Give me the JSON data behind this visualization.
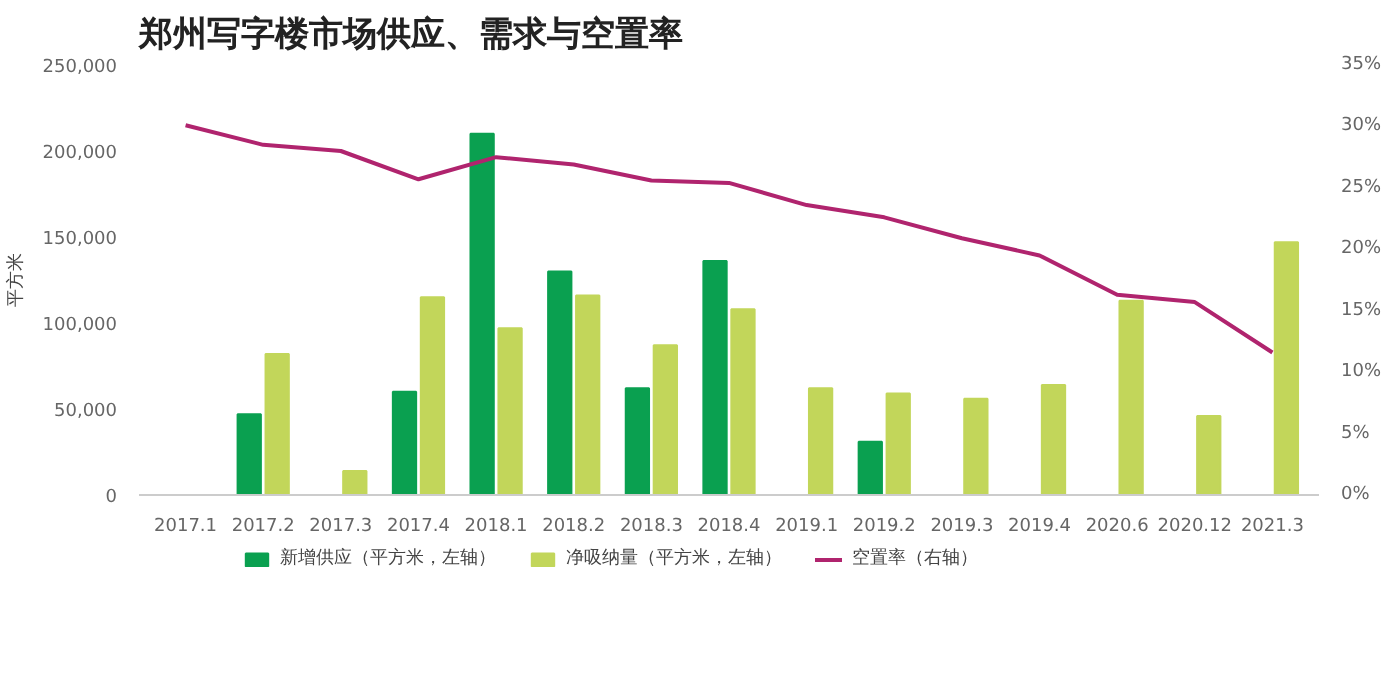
{
  "chart_data": {
    "type": "bar",
    "title": "郑州写字楼市场供应、需求与空置率",
    "ylabel": "平方米",
    "categories": [
      "2017.1",
      "2017.2",
      "2017.3",
      "2017.4",
      "2018.1",
      "2018.2",
      "2018.3",
      "2018.4",
      "2019.1",
      "2019.2",
      "2019.3",
      "2019.4",
      "2020.6",
      "2020.12",
      "2021.3"
    ],
    "series": [
      {
        "name": "新增供应（平方米，左轴）",
        "color": "#0aa050",
        "values": [
          null,
          47000,
          null,
          60000,
          210000,
          130000,
          62000,
          136000,
          null,
          31000,
          null,
          null,
          null,
          null,
          null
        ]
      },
      {
        "name": "净吸纳量（平方米，左轴）",
        "color": "#c2d65a",
        "values": [
          null,
          82000,
          14000,
          115000,
          97000,
          116000,
          87000,
          108000,
          62000,
          59000,
          56000,
          64000,
          113000,
          46000,
          147000
        ]
      },
      {
        "name": "空置率（右轴）",
        "color": "#b0246e",
        "type": "line",
        "axis": "y2",
        "values": [
          30.1,
          28.5,
          28.0,
          25.7,
          27.5,
          26.9,
          25.6,
          25.4,
          23.6,
          22.6,
          20.9,
          19.5,
          16.3,
          15.7,
          11.6
        ]
      }
    ],
    "ylim": [
      0,
      250000
    ],
    "yticks": [
      {
        "value": 0,
        "label": "0"
      },
      {
        "value": 50000,
        "label": "50,000"
      },
      {
        "value": 100000,
        "label": "100,000"
      },
      {
        "value": 150000,
        "label": "150,000"
      },
      {
        "value": 200000,
        "label": "200,000"
      },
      {
        "value": 250000,
        "label": "250,000"
      }
    ],
    "y2lim": [
      0,
      35
    ],
    "y2ticks": [
      {
        "value": 0,
        "label": "0%"
      },
      {
        "value": 5,
        "label": "5%"
      },
      {
        "value": 10,
        "label": "10%"
      },
      {
        "value": 15,
        "label": "15%"
      },
      {
        "value": 20,
        "label": "20%"
      },
      {
        "value": 25,
        "label": "25%"
      },
      {
        "value": 30,
        "label": "30%"
      },
      {
        "value": 35,
        "label": "35%"
      }
    ],
    "grid": false,
    "legend": "bottom",
    "marker": "none",
    "line_style": "solid"
  }
}
